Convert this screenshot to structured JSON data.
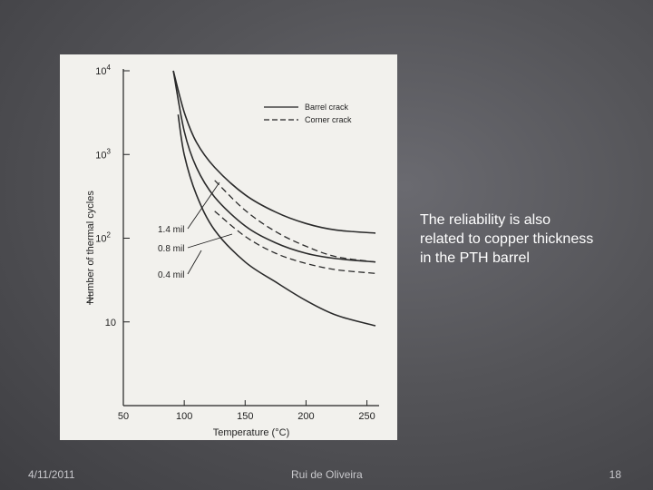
{
  "slide": {
    "caption_lines": [
      "The reliability is also",
      "related to copper thickness",
      "in the PTH barrel"
    ],
    "footer": {
      "date": "4/11/2011",
      "author": "Rui de Oliveira",
      "page": "18"
    }
  },
  "chart_data": {
    "type": "line",
    "xlabel": "Temperature (°C)",
    "ylabel": "Number of thermal cycles",
    "xlim": [
      50,
      260
    ],
    "ylim": [
      1,
      10000
    ],
    "yscale": "log",
    "xticks": [
      50,
      100,
      150,
      200,
      250
    ],
    "yticks": [
      {
        "value": 10,
        "label": "10",
        "exp": ""
      },
      {
        "value": 100,
        "label": "10",
        "exp": "2"
      },
      {
        "value": 1000,
        "label": "10",
        "exp": "3"
      },
      {
        "value": 10000,
        "label": "10",
        "exp": "4"
      }
    ],
    "grid": false,
    "legend_position": "top-right",
    "legend": [
      {
        "label": "Barrel crack",
        "style": "solid"
      },
      {
        "label": "Corner crack",
        "style": "dashed"
      }
    ],
    "series": [
      {
        "name": "1.4 mil",
        "crack": "Barrel crack",
        "style": "solid",
        "x": [
          91,
          100,
          110,
          125,
          150,
          175,
          200,
          225,
          257
        ],
        "y": [
          10000,
          3200,
          1400,
          700,
          330,
          205,
          150,
          125,
          115
        ]
      },
      {
        "name": "1.4 mil",
        "crack": "Corner crack",
        "style": "dashed",
        "x": [
          125,
          150,
          175,
          200,
          225,
          257
        ],
        "y": [
          490,
          215,
          120,
          80,
          60,
          52
        ]
      },
      {
        "name": "0.8 mil",
        "crack": "Barrel crack",
        "style": "solid",
        "x": [
          91,
          100,
          110,
          125,
          150,
          175,
          200,
          225,
          257
        ],
        "y": [
          10000,
          1900,
          700,
          310,
          140,
          88,
          66,
          57,
          52
        ]
      },
      {
        "name": "0.8 mil",
        "crack": "Corner crack",
        "style": "dashed",
        "x": [
          125,
          150,
          175,
          200,
          225,
          257
        ],
        "y": [
          210,
          105,
          66,
          50,
          42,
          38
        ]
      },
      {
        "name": "0.4 mil",
        "crack": "Barrel crack",
        "style": "solid",
        "x": [
          95,
          100,
          110,
          125,
          150,
          175,
          200,
          225,
          257
        ],
        "y": [
          3000,
          1000,
          330,
          125,
          52,
          30,
          18,
          12,
          9
        ]
      }
    ],
    "annotations": [
      "1.4 mil",
      "0.8 mil",
      "0.4 mil"
    ]
  }
}
